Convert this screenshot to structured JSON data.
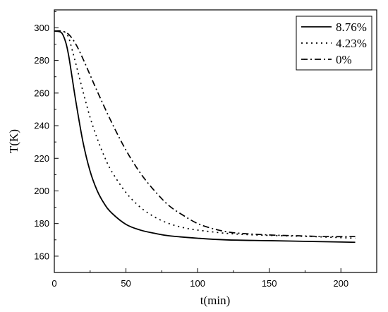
{
  "chart_data": {
    "type": "line",
    "xlabel": "t(min)",
    "ylabel": "T(K)",
    "xlim": [
      0,
      225
    ],
    "ylim": [
      150,
      311
    ],
    "xticks": [
      0,
      50,
      100,
      150,
      200
    ],
    "yticks": [
      160,
      180,
      200,
      220,
      240,
      260,
      280,
      300
    ],
    "grid": false,
    "legend_position": "top-right",
    "series": [
      {
        "name": "8.76%",
        "style": "solid",
        "x": [
          0,
          5,
          8,
          10,
          12,
          15,
          20,
          25,
          30,
          35,
          40,
          50,
          60,
          70,
          80,
          100,
          120,
          150,
          180,
          210
        ],
        "y": [
          298,
          297,
          291,
          283,
          272,
          255,
          230,
          212,
          200,
          192,
          186.5,
          179.5,
          176,
          174,
          172.5,
          171,
          170,
          169.5,
          169,
          168.5
        ]
      },
      {
        "name": "4.23%",
        "style": "dotted",
        "x": [
          0,
          5,
          8,
          10,
          12,
          15,
          20,
          25,
          30,
          35,
          40,
          50,
          60,
          70,
          80,
          90,
          100,
          120,
          140,
          160,
          180,
          210
        ],
        "y": [
          298,
          298,
          297,
          294,
          288,
          278,
          261,
          245,
          232,
          221,
          212,
          199,
          190,
          184,
          180,
          177.5,
          176,
          174,
          173,
          172.5,
          172,
          171
        ]
      },
      {
        "name": "0%",
        "style": "dashdot",
        "x": [
          0,
          5,
          10,
          15,
          20,
          25,
          30,
          40,
          50,
          60,
          70,
          80,
          90,
          100,
          110,
          120,
          130,
          150,
          170,
          190,
          210
        ],
        "y": [
          298,
          298,
          296,
          290,
          281,
          271,
          261,
          242,
          225,
          211,
          200,
          191,
          185,
          180,
          177,
          175,
          174,
          173,
          172.5,
          172,
          172
        ]
      }
    ]
  }
}
